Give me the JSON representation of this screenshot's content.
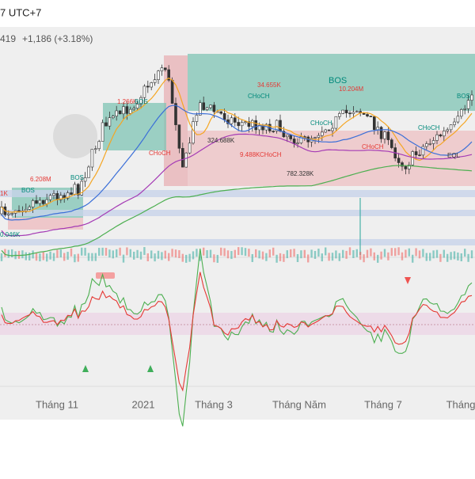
{
  "header": {
    "timezone": "7 UTC+7",
    "price": "419",
    "change": "+1,186 (+3.18%)"
  },
  "annotations": [
    "1K",
    "BOS",
    "6.208M",
    "BOS",
    "0.046K",
    "1.266K",
    "BOS",
    "CHoCH",
    "34.655K",
    "BOS",
    "10.204M",
    "CHoCH",
    "CHoCH",
    "324.688K",
    "9.488K",
    "CHoCH",
    "782.328K",
    "CHoCH",
    "CHoCH",
    "BOS",
    "EQL"
  ],
  "x_axis": [
    "Tháng 11",
    "2021",
    "Tháng 3",
    "Tháng Năm",
    "Tháng 7",
    "Tháng"
  ]
}
